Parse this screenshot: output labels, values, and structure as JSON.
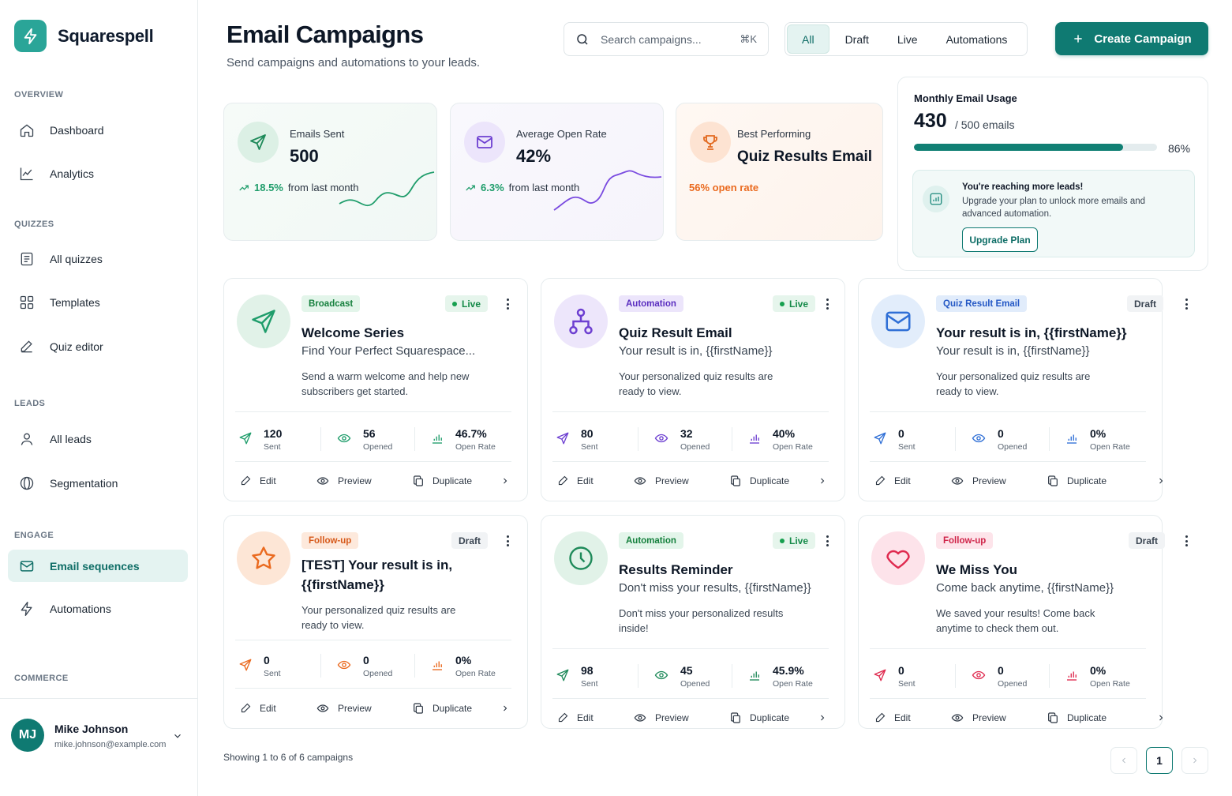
{
  "app": {
    "name": "Squarespell"
  },
  "sidebar": {
    "sections": [
      {
        "label": "OVERVIEW"
      },
      {
        "label": "QUIZZES"
      },
      {
        "label": "LEADS"
      },
      {
        "label": "ENGAGE"
      },
      {
        "label": "COMMERCE"
      }
    ],
    "items": [
      {
        "label": "Dashboard",
        "icon": "home-icon"
      },
      {
        "label": "Analytics",
        "icon": "chart-icon"
      },
      {
        "label": "All quizzes",
        "icon": "document-icon"
      },
      {
        "label": "Templates",
        "icon": "grid-icon"
      },
      {
        "label": "Quiz editor",
        "icon": "pen-icon"
      },
      {
        "label": "All leads",
        "icon": "user-icon"
      },
      {
        "label": "Segmentation",
        "icon": "segment-icon"
      },
      {
        "label": "Email sequences",
        "icon": "mail-icon",
        "active": true
      },
      {
        "label": "Automations",
        "icon": "bolt-icon"
      }
    ]
  },
  "user": {
    "initials": "MJ",
    "name": "Mike Johnson",
    "email": "mike.johnson@example.com"
  },
  "header": {
    "title": "Email Campaigns",
    "subtitle": "Send campaigns and automations to your leads.",
    "search_placeholder": "Search campaigns...",
    "search_shortcut": "⌘K",
    "filters": [
      "All",
      "Draft",
      "Live",
      "Automations"
    ],
    "active_filter": "All",
    "create_label": "Create Campaign"
  },
  "stats": {
    "sent": {
      "label": "Emails Sent",
      "value": "500",
      "trend": "18.5%",
      "trend_text": "from last month"
    },
    "open_rate": {
      "label": "Average Open Rate",
      "value": "42%",
      "trend": "6.3%",
      "trend_text": "from last month"
    },
    "best": {
      "label": "Best Performing",
      "value": "Quiz Results Email",
      "note": "56% open rate"
    }
  },
  "usage": {
    "title": "Monthly Email Usage",
    "count": "430",
    "total": "/ 500 emails",
    "percent_label": "86%",
    "fraction": 0.86,
    "upgrade_title": "You're reaching more leads!",
    "upgrade_text": "Upgrade your plan to unlock more emails and advanced automation.",
    "upgrade_button": "Upgrade Plan"
  },
  "metric_labels": {
    "sent": "Sent",
    "opened": "Opened",
    "open_rate": "Open Rate"
  },
  "action_labels": {
    "edit": "Edit",
    "preview": "Preview",
    "duplicate": "Duplicate"
  },
  "campaigns": [
    {
      "tag": "Broadcast",
      "status": "Live",
      "title": "Welcome Series",
      "subject": "Find Your Perfect Squarespace...",
      "description": "Send a warm welcome and help new subscribers get started.",
      "sent": "120",
      "opened": "56",
      "open_rate": "46.7%",
      "icon": "send-icon",
      "accent": "#1f9d6b"
    },
    {
      "tag": "Automation",
      "status": "Live",
      "title": "Quiz Result Email",
      "subject": "Your result is in, {{firstName}}",
      "description": "Your personalized quiz results are ready to view.",
      "sent": "80",
      "opened": "32",
      "open_rate": "40%",
      "icon": "workflow-icon",
      "accent": "#6d3fd1"
    },
    {
      "tag": "Quiz Result Email",
      "status": "Draft",
      "title": "Your result is in, {{firstName}}",
      "subject": "Your result is in, {{firstName}}",
      "description": "Your personalized quiz results are ready to view.",
      "sent": "0",
      "opened": "0",
      "open_rate": "0%",
      "icon": "mail-icon",
      "accent": "#2f6fd6"
    },
    {
      "tag": "Follow-up",
      "status": "Draft",
      "title": "[TEST] Your result is in, {{firstName}}",
      "subject": "",
      "description": "Your personalized quiz results are ready to view.",
      "sent": "0",
      "opened": "0",
      "open_rate": "0%",
      "icon": "star-icon",
      "accent": "#ea6a1f"
    },
    {
      "tag": "Automation",
      "status": "Live",
      "title": "Results Reminder",
      "subject": "Don't miss your results, {{firstName}}",
      "description": "Don't miss your personalized results inside!",
      "sent": "98",
      "opened": "45",
      "open_rate": "45.9%",
      "icon": "clock-icon",
      "accent": "#1f8a5a"
    },
    {
      "tag": "Follow-up",
      "status": "Draft",
      "title": "We Miss You",
      "subject": "Come back anytime, {{firstName}}",
      "description": "We saved your results! Come back anytime to check them out.",
      "sent": "0",
      "opened": "0",
      "open_rate": "0%",
      "icon": "heart-icon",
      "accent": "#df2a4f"
    }
  ],
  "footer": {
    "showing": "Showing 1 to 6 of 6 campaigns",
    "page": "1"
  }
}
